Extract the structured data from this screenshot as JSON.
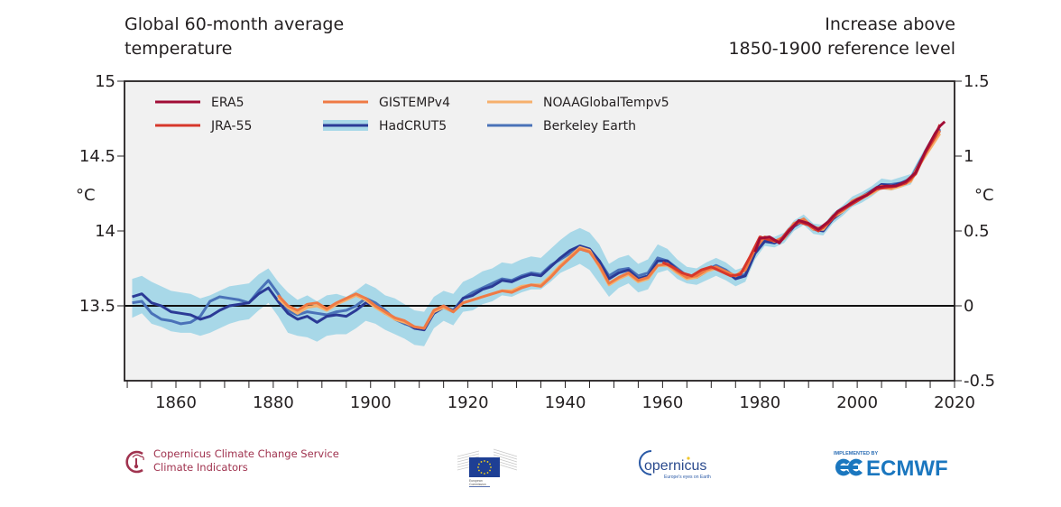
{
  "titles": {
    "left_line1": "Global 60-month average",
    "left_line2": "temperature",
    "right_line1": "Increase above",
    "right_line2": "1850-1900 reference level"
  },
  "chart_data": {
    "type": "line",
    "title": "Global 60-month average temperature",
    "right_title": "Increase above 1850-1900 reference level",
    "xlabel": "",
    "ylabel_left": "°C",
    "ylabel_right": "°C",
    "xlim": [
      1850,
      2021
    ],
    "ylim_left": [
      13.0,
      15.0
    ],
    "ylim_right": [
      -0.5,
      1.5
    ],
    "reference_level_left": 13.5,
    "x_ticks": [
      1860,
      1880,
      1900,
      1920,
      1940,
      1960,
      1980,
      2000,
      2020
    ],
    "x_tick_labels": [
      "1860",
      "1880",
      "1900",
      "1920",
      "1940",
      "1960",
      "1980",
      "2000",
      "2020"
    ],
    "y_ticks_left": [
      13.5,
      14,
      14.5,
      15
    ],
    "y_tick_labels_left": [
      "13.5",
      "14",
      "14.5",
      "15"
    ],
    "y_ticks_right": [
      -0.5,
      0,
      0.5,
      1,
      1.5
    ],
    "y_tick_labels_right": [
      "-0.5",
      "0",
      "0.5",
      "1",
      "1.5"
    ],
    "grid": false,
    "legend_position": "top-left",
    "background": "#f1f1f1",
    "series": [
      {
        "name": "HadCRUT5",
        "color": "#2b3a96",
        "band_color": "#a8d8e8",
        "x": [
          1851,
          1853,
          1855,
          1857,
          1859,
          1861,
          1863,
          1865,
          1867,
          1869,
          1871,
          1873,
          1875,
          1877,
          1879,
          1881,
          1883,
          1885,
          1887,
          1889,
          1891,
          1893,
          1895,
          1897,
          1899,
          1901,
          1903,
          1905,
          1907,
          1909,
          1911,
          1913,
          1915,
          1917,
          1919,
          1921,
          1923,
          1925,
          1927,
          1929,
          1931,
          1933,
          1935,
          1937,
          1939,
          1941,
          1943,
          1945,
          1947,
          1949,
          1951,
          1953,
          1955,
          1957,
          1959,
          1961,
          1963,
          1965,
          1967,
          1969,
          1971,
          1973,
          1975,
          1977,
          1979,
          1981,
          1983,
          1985,
          1987,
          1989,
          1991,
          1993,
          1995,
          1997,
          1999,
          2001,
          2003,
          2005,
          2007,
          2009,
          2011,
          2013,
          2015,
          2017
        ],
        "values": [
          0.06,
          0.08,
          0.02,
          0.0,
          -0.04,
          -0.05,
          -0.06,
          -0.09,
          -0.07,
          -0.03,
          0.0,
          0.01,
          0.02,
          0.08,
          0.12,
          0.03,
          -0.05,
          -0.09,
          -0.07,
          -0.11,
          -0.07,
          -0.06,
          -0.07,
          -0.03,
          0.02,
          0.0,
          -0.05,
          -0.08,
          -0.11,
          -0.15,
          -0.16,
          -0.05,
          -0.01,
          -0.04,
          0.05,
          0.07,
          0.11,
          0.13,
          0.17,
          0.16,
          0.19,
          0.21,
          0.2,
          0.26,
          0.32,
          0.37,
          0.4,
          0.38,
          0.3,
          0.18,
          0.22,
          0.24,
          0.18,
          0.2,
          0.3,
          0.3,
          0.24,
          0.2,
          0.19,
          0.23,
          0.26,
          0.23,
          0.18,
          0.2,
          0.35,
          0.43,
          0.42,
          0.45,
          0.53,
          0.57,
          0.51,
          0.5,
          0.58,
          0.63,
          0.69,
          0.72,
          0.76,
          0.81,
          0.8,
          0.82,
          0.84,
          0.96,
          1.07,
          1.17
        ],
        "band_lower": [
          -0.08,
          -0.05,
          -0.12,
          -0.14,
          -0.17,
          -0.18,
          -0.18,
          -0.2,
          -0.18,
          -0.15,
          -0.12,
          -0.1,
          -0.09,
          -0.03,
          0.02,
          -0.07,
          -0.18,
          -0.2,
          -0.21,
          -0.24,
          -0.2,
          -0.19,
          -0.19,
          -0.15,
          -0.1,
          -0.12,
          -0.16,
          -0.19,
          -0.22,
          -0.26,
          -0.27,
          -0.15,
          -0.1,
          -0.13,
          -0.04,
          -0.03,
          0.01,
          0.03,
          0.07,
          0.06,
          0.09,
          0.11,
          0.11,
          0.16,
          0.22,
          0.25,
          0.28,
          0.24,
          0.15,
          0.06,
          0.12,
          0.15,
          0.09,
          0.11,
          0.22,
          0.24,
          0.18,
          0.15,
          0.14,
          0.17,
          0.2,
          0.17,
          0.13,
          0.16,
          0.31,
          0.4,
          0.39,
          0.42,
          0.5,
          0.54,
          0.48,
          0.47,
          0.55,
          0.6,
          0.66,
          0.69,
          0.73,
          0.78,
          0.77,
          0.79,
          0.81,
          0.93,
          1.04,
          1.14
        ],
        "band_upper": [
          0.18,
          0.2,
          0.16,
          0.13,
          0.1,
          0.09,
          0.08,
          0.05,
          0.07,
          0.1,
          0.13,
          0.14,
          0.15,
          0.21,
          0.25,
          0.16,
          0.09,
          0.04,
          0.07,
          0.03,
          0.07,
          0.08,
          0.06,
          0.1,
          0.15,
          0.12,
          0.07,
          0.05,
          0.01,
          -0.03,
          -0.04,
          0.06,
          0.1,
          0.08,
          0.16,
          0.19,
          0.23,
          0.25,
          0.29,
          0.28,
          0.31,
          0.33,
          0.32,
          0.38,
          0.44,
          0.49,
          0.52,
          0.49,
          0.41,
          0.28,
          0.32,
          0.34,
          0.28,
          0.31,
          0.41,
          0.38,
          0.31,
          0.26,
          0.25,
          0.29,
          0.32,
          0.29,
          0.24,
          0.26,
          0.39,
          0.47,
          0.46,
          0.49,
          0.57,
          0.61,
          0.55,
          0.54,
          0.62,
          0.67,
          0.73,
          0.76,
          0.8,
          0.85,
          0.84,
          0.86,
          0.88,
          1.0,
          1.11,
          1.2
        ]
      },
      {
        "name": "Berkeley Earth",
        "color": "#4a72b8",
        "x": [
          1851,
          1853,
          1855,
          1857,
          1859,
          1861,
          1863,
          1865,
          1867,
          1869,
          1871,
          1873,
          1875,
          1877,
          1879,
          1881,
          1883,
          1885,
          1887,
          1889,
          1891,
          1893,
          1895,
          1897,
          1899,
          1901,
          1903,
          1905,
          1907,
          1909,
          1911,
          1913,
          1915,
          1917,
          1919,
          1921,
          1923,
          1925,
          1927,
          1929,
          1931,
          1933,
          1935,
          1937,
          1939,
          1941,
          1943,
          1945,
          1947,
          1949,
          1951,
          1953,
          1955,
          1957,
          1959,
          1961,
          1963,
          1965,
          1967,
          1969,
          1971,
          1973,
          1975,
          1977,
          1979,
          1981,
          1983,
          1985,
          1987,
          1989,
          1991,
          1993,
          1995,
          1997,
          1999,
          2001,
          2003,
          2005,
          2007,
          2009,
          2011,
          2013,
          2015,
          2017
        ],
        "values": [
          0.02,
          0.03,
          -0.05,
          -0.09,
          -0.1,
          -0.12,
          -0.11,
          -0.07,
          0.03,
          0.06,
          0.05,
          0.04,
          0.02,
          0.1,
          0.17,
          0.08,
          -0.03,
          -0.06,
          -0.04,
          -0.05,
          -0.06,
          -0.04,
          -0.03,
          0.0,
          0.05,
          0.02,
          -0.03,
          -0.09,
          -0.12,
          -0.14,
          -0.16,
          -0.04,
          0.0,
          -0.03,
          0.05,
          0.09,
          0.12,
          0.15,
          0.18,
          0.17,
          0.2,
          0.22,
          0.21,
          0.27,
          0.31,
          0.35,
          0.38,
          0.36,
          0.3,
          0.2,
          0.24,
          0.25,
          0.2,
          0.22,
          0.32,
          0.3,
          0.25,
          0.2,
          0.2,
          0.24,
          0.27,
          0.24,
          0.19,
          0.21,
          0.36,
          0.44,
          0.42,
          0.46,
          0.54,
          0.57,
          0.52,
          0.51,
          0.59,
          0.64,
          0.69,
          0.73,
          0.77,
          0.81,
          0.81,
          0.82,
          0.85,
          0.97,
          1.08,
          1.18
        ]
      },
      {
        "name": "GISTEMPv4",
        "color": "#ef7a45",
        "x": [
          1881,
          1883,
          1885,
          1887,
          1889,
          1891,
          1893,
          1895,
          1897,
          1899,
          1901,
          1903,
          1905,
          1907,
          1909,
          1911,
          1913,
          1915,
          1917,
          1919,
          1921,
          1923,
          1925,
          1927,
          1929,
          1931,
          1933,
          1935,
          1937,
          1939,
          1941,
          1943,
          1945,
          1947,
          1949,
          1951,
          1953,
          1955,
          1957,
          1959,
          1961,
          1963,
          1965,
          1967,
          1969,
          1971,
          1973,
          1975,
          1977,
          1979,
          1981,
          1983,
          1985,
          1987,
          1989,
          1991,
          1993,
          1995,
          1997,
          1999,
          2001,
          2003,
          2005,
          2007,
          2009,
          2011,
          2013,
          2015,
          2017
        ],
        "values": [
          0.07,
          0.0,
          -0.03,
          0.01,
          0.02,
          -0.02,
          0.02,
          0.05,
          0.08,
          0.05,
          0.0,
          -0.04,
          -0.08,
          -0.1,
          -0.14,
          -0.15,
          -0.03,
          0.0,
          -0.04,
          0.02,
          0.04,
          0.06,
          0.08,
          0.1,
          0.09,
          0.12,
          0.14,
          0.13,
          0.19,
          0.26,
          0.32,
          0.38,
          0.36,
          0.27,
          0.15,
          0.19,
          0.22,
          0.17,
          0.19,
          0.27,
          0.28,
          0.23,
          0.19,
          0.2,
          0.24,
          0.26,
          0.23,
          0.2,
          0.24,
          0.38,
          0.46,
          0.43,
          0.46,
          0.55,
          0.58,
          0.52,
          0.52,
          0.6,
          0.64,
          0.7,
          0.73,
          0.76,
          0.8,
          0.79,
          0.81,
          0.84,
          0.96,
          1.07,
          1.17
        ]
      },
      {
        "name": "NOAAGlobalTempv5",
        "color": "#f6b06c",
        "x": [
          1881,
          1883,
          1885,
          1887,
          1889,
          1891,
          1893,
          1895,
          1897,
          1899,
          1901,
          1903,
          1905,
          1907,
          1909,
          1911,
          1913,
          1915,
          1917,
          1919,
          1921,
          1923,
          1925,
          1927,
          1929,
          1931,
          1933,
          1935,
          1937,
          1939,
          1941,
          1943,
          1945,
          1947,
          1949,
          1951,
          1953,
          1955,
          1957,
          1959,
          1961,
          1963,
          1965,
          1967,
          1969,
          1971,
          1973,
          1975,
          1977,
          1979,
          1981,
          1983,
          1985,
          1987,
          1989,
          1991,
          1993,
          1995,
          1997,
          1999,
          2001,
          2003,
          2005,
          2007,
          2009,
          2011,
          2013,
          2015,
          2017
        ],
        "values": [
          0.05,
          -0.01,
          -0.05,
          -0.01,
          0.0,
          -0.03,
          0.01,
          0.04,
          0.07,
          0.04,
          -0.01,
          -0.05,
          -0.09,
          -0.11,
          -0.14,
          -0.15,
          -0.04,
          -0.01,
          -0.04,
          0.02,
          0.04,
          0.06,
          0.08,
          0.1,
          0.1,
          0.13,
          0.14,
          0.14,
          0.2,
          0.27,
          0.33,
          0.39,
          0.37,
          0.26,
          0.14,
          0.18,
          0.21,
          0.16,
          0.18,
          0.27,
          0.27,
          0.22,
          0.18,
          0.19,
          0.23,
          0.25,
          0.22,
          0.2,
          0.25,
          0.39,
          0.46,
          0.43,
          0.45,
          0.54,
          0.57,
          0.51,
          0.51,
          0.59,
          0.63,
          0.69,
          0.72,
          0.75,
          0.79,
          0.78,
          0.8,
          0.83,
          0.95,
          1.05,
          1.15
        ]
      },
      {
        "name": "JRA-55",
        "color": "#d7372b",
        "x": [
          1960,
          1962,
          1964,
          1966,
          1968,
          1970,
          1972,
          1974,
          1976,
          1978,
          1980,
          1982,
          1984,
          1986,
          1988,
          1990,
          1992,
          1994,
          1996,
          1998,
          2000,
          2002,
          2004,
          2006,
          2008,
          2010,
          2012,
          2014,
          2016,
          2017
        ],
        "values": [
          0.29,
          0.26,
          0.22,
          0.2,
          0.24,
          0.26,
          0.23,
          0.2,
          0.21,
          0.33,
          0.46,
          0.44,
          0.43,
          0.51,
          0.56,
          0.54,
          0.5,
          0.55,
          0.62,
          0.66,
          0.7,
          0.74,
          0.78,
          0.79,
          0.8,
          0.82,
          0.88,
          1.02,
          1.13,
          1.21
        ]
      },
      {
        "name": "ERA5",
        "color": "#a10d36",
        "x": [
          1979,
          1980,
          1982,
          1984,
          1986,
          1988,
          1990,
          1992,
          1994,
          1996,
          1998,
          2000,
          2002,
          2004,
          2006,
          2008,
          2010,
          2012,
          2014,
          2016,
          2017,
          2018
        ],
        "values": [
          0.36,
          0.45,
          0.46,
          0.42,
          0.5,
          0.57,
          0.55,
          0.51,
          0.56,
          0.63,
          0.67,
          0.71,
          0.74,
          0.79,
          0.8,
          0.8,
          0.83,
          0.89,
          1.03,
          1.15,
          1.2,
          1.23
        ]
      }
    ]
  },
  "legend": [
    {
      "name": "ERA5",
      "color": "#a10d36",
      "band": false
    },
    {
      "name": "JRA-55",
      "color": "#d7372b",
      "band": false
    },
    {
      "name": "GISTEMPv4",
      "color": "#ef7a45",
      "band": false
    },
    {
      "name": "HadCRUT5",
      "color": "#2b3a96",
      "band": true,
      "band_color": "#a8d8e8"
    },
    {
      "name": "NOAAGlobalTempv5",
      "color": "#f6b06c",
      "band": false
    },
    {
      "name": "Berkeley Earth",
      "color": "#4a72b8",
      "band": false
    }
  ],
  "footer": {
    "c3s_line1": "Copernicus Climate Change Service",
    "c3s_line2": "Climate Indicators",
    "ec_caption_line1": "European",
    "ec_caption_line2": "Commission",
    "copernicus_word": "opernicus",
    "copernicus_tagline": "Europe's eyes on Earth",
    "ecmwf_implemented": "IMPLEMENTED BY",
    "ecmwf_word": "ECMWF"
  }
}
